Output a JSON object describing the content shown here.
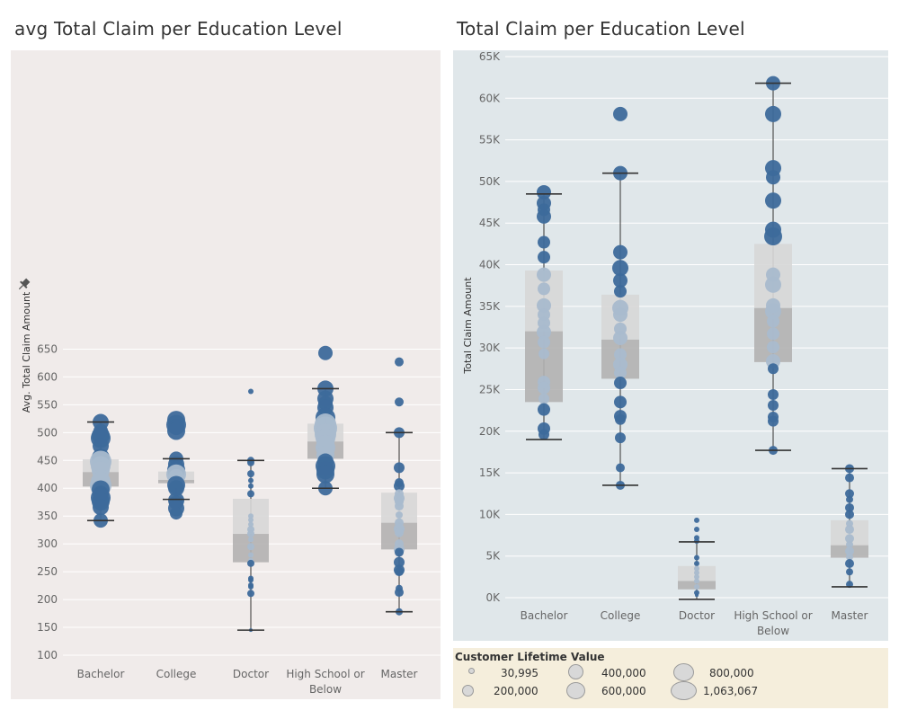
{
  "chart_data": [
    {
      "type": "scatter",
      "title": "avg Total Claim per Education Level",
      "ylabel": "Avg. Total Claim Amount",
      "xlabel": "",
      "categories": [
        "Bachelor",
        "College",
        "Doctor",
        "High School or Below",
        "Master"
      ],
      "y_ticks": [
        "650",
        "600",
        "550",
        "500",
        "450",
        "400",
        "350",
        "300",
        "250",
        "200",
        "150",
        "100"
      ],
      "ylim": [
        95,
        655
      ],
      "grid": true,
      "boxplots": [
        {
          "category": "Bachelor",
          "whisker_low": 342,
          "q1": 403,
          "median": 429,
          "q3": 452,
          "whisker_high": 519
        },
        {
          "category": "College",
          "whisker_low": 380,
          "q1": 409,
          "median": 415,
          "q3": 430,
          "whisker_high": 453
        },
        {
          "category": "Doctor",
          "whisker_low": 145,
          "q1": 267,
          "median": 318,
          "q3": 381,
          "whisker_high": 450
        },
        {
          "category": "High School or Below",
          "whisker_low": 400,
          "q1": 453,
          "median": 484,
          "q3": 516,
          "whisker_high": 579
        },
        {
          "category": "Master",
          "whisker_low": 178,
          "q1": 290,
          "median": 338,
          "q3": 392,
          "whisker_high": 500
        }
      ],
      "points": [
        {
          "category": "Bachelor",
          "y": [
            519,
            503,
            495,
            490,
            476,
            455,
            448,
            440,
            432,
            420,
            412,
            405,
            398,
            390,
            383,
            376,
            366,
            342
          ],
          "r": [
            9,
            8,
            10,
            11,
            9,
            10,
            12,
            11,
            10,
            9,
            11,
            12,
            10,
            9,
            11,
            10,
            9,
            8
          ]
        },
        {
          "category": "College",
          "y": [
            523,
            514,
            510,
            503,
            453,
            443,
            433,
            425,
            420,
            413,
            406,
            400,
            378,
            374,
            364,
            355
          ],
          "r": [
            10,
            11,
            9,
            10,
            8,
            9,
            10,
            11,
            9,
            8,
            10,
            9,
            9,
            8,
            9,
            7
          ]
        },
        {
          "category": "Doctor",
          "y": [
            574,
            450,
            446,
            426,
            414,
            404,
            390,
            350,
            343,
            335,
            326,
            318,
            308,
            295,
            280,
            270,
            265,
            238,
            235,
            226,
            223,
            211,
            145
          ],
          "r": [
            3,
            4,
            4,
            4,
            3,
            3,
            4,
            3,
            3,
            3,
            4,
            4,
            3,
            4,
            3,
            3,
            4,
            3,
            3,
            3,
            3,
            4,
            2
          ]
        },
        {
          "category": "High School or Below",
          "y": [
            643,
            579,
            561,
            553,
            545,
            527,
            515,
            508,
            497,
            490,
            480,
            473,
            460,
            448,
            440,
            432,
            425,
            400
          ],
          "r": [
            8,
            9,
            9,
            8,
            9,
            11,
            12,
            13,
            12,
            11,
            10,
            11,
            10,
            9,
            11,
            10,
            10,
            8
          ]
        },
        {
          "category": "Master",
          "y": [
            627,
            555,
            500,
            437,
            410,
            404,
            390,
            382,
            376,
            368,
            352,
            338,
            327,
            320,
            300,
            290,
            285,
            267,
            253,
            250,
            220,
            213,
            178
          ],
          "r": [
            5,
            5,
            6,
            6,
            5,
            6,
            5,
            6,
            5,
            5,
            4,
            5,
            6,
            5,
            5,
            6,
            5,
            6,
            6,
            5,
            4,
            5,
            4
          ]
        }
      ]
    },
    {
      "type": "scatter",
      "title": "Total Claim per Education Level",
      "ylabel": "Total Claim Amount",
      "xlabel": "",
      "categories": [
        "Bachelor",
        "College",
        "Doctor",
        "High School or",
        "Master"
      ],
      "category_line2": [
        "",
        "",
        "",
        "Below",
        ""
      ],
      "y_ticks": [
        "65K",
        "60K",
        "55K",
        "50K",
        "45K",
        "40K",
        "35K",
        "30K",
        "25K",
        "20K",
        "15K",
        "10K",
        "5K",
        "0K"
      ],
      "ylim": [
        0,
        65000
      ],
      "grid": true,
      "boxplots": [
        {
          "category": "Bachelor",
          "whisker_low": 19000,
          "q1": 23500,
          "median": 32000,
          "q3": 39300,
          "whisker_high": 48500
        },
        {
          "category": "College",
          "whisker_low": 13500,
          "q1": 26300,
          "median": 31000,
          "q3": 36400,
          "whisker_high": 51000
        },
        {
          "category": "Doctor",
          "whisker_low": -200,
          "q1": 1000,
          "median": 2000,
          "q3": 3800,
          "whisker_high": 6700
        },
        {
          "category": "High School or Below",
          "whisker_low": 17700,
          "q1": 28300,
          "median": 34800,
          "q3": 42500,
          "whisker_high": 61800
        },
        {
          "category": "Master",
          "whisker_low": 1300,
          "q1": 4800,
          "median": 6300,
          "q3": 9300,
          "whisker_high": 15500
        }
      ],
      "points": [
        {
          "category": "Bachelor",
          "y": [
            48700,
            47400,
            46600,
            45800,
            42700,
            40900,
            38800,
            37100,
            35100,
            34000,
            33000,
            31900,
            30700,
            29300,
            25900,
            25200,
            23900,
            22600,
            20300,
            19600
          ],
          "r": [
            8,
            8,
            7,
            8,
            7,
            7,
            8,
            7,
            8,
            7,
            7,
            8,
            7,
            6,
            7,
            7,
            6,
            7,
            7,
            6
          ]
        },
        {
          "category": "College",
          "y": [
            58100,
            51000,
            41500,
            39600,
            38100,
            36800,
            34800,
            34000,
            32300,
            31200,
            29200,
            28000,
            27000,
            25800,
            23500,
            21800,
            21400,
            19200,
            15600,
            13500
          ],
          "r": [
            8,
            8,
            8,
            9,
            8,
            7,
            9,
            8,
            7,
            8,
            7,
            8,
            7,
            7,
            7,
            7,
            6,
            6,
            5,
            5
          ]
        },
        {
          "category": "Doctor",
          "y": [
            9300,
            8200,
            7200,
            6800,
            4800,
            4100,
            3500,
            3000,
            2500,
            2000,
            1300,
            600,
            300
          ],
          "r": [
            3,
            3,
            3,
            3,
            3,
            3,
            3,
            3,
            3,
            3,
            3,
            3,
            2
          ]
        },
        {
          "category": "High School or Below",
          "y": [
            61800,
            58100,
            51600,
            50500,
            47700,
            44200,
            43400,
            38800,
            37600,
            35100,
            34400,
            33200,
            31700,
            30100,
            28400,
            27500,
            24400,
            23100,
            21700,
            21200,
            17700
          ],
          "r": [
            8,
            9,
            9,
            8,
            9,
            9,
            10,
            8,
            9,
            8,
            9,
            7,
            7,
            7,
            8,
            6,
            6,
            6,
            6,
            6,
            5
          ]
        },
        {
          "category": "Master",
          "y": [
            15500,
            14400,
            12500,
            11800,
            10800,
            10000,
            8900,
            8200,
            7100,
            6400,
            5600,
            4900,
            4100,
            3100,
            1600
          ],
          "r": [
            5,
            5,
            5,
            4,
            5,
            5,
            4,
            5,
            5,
            4,
            5,
            4,
            5,
            4,
            4
          ]
        }
      ]
    }
  ],
  "legend": {
    "title": "Customer Lifetime Value",
    "items": [
      "30,995",
      "200,000",
      "400,000",
      "600,000",
      "800,000",
      "1,063,067"
    ]
  },
  "colors": {
    "left_bg": "#f0ebea",
    "right_bg": "#e0e7ea",
    "point_dark": "#3d6a9b",
    "point_light": "#a9bbce",
    "box_upper": "#d7d7d7",
    "box_lower": "#b3b1b1",
    "whisker": "#333333",
    "grid": "#ffffff"
  }
}
